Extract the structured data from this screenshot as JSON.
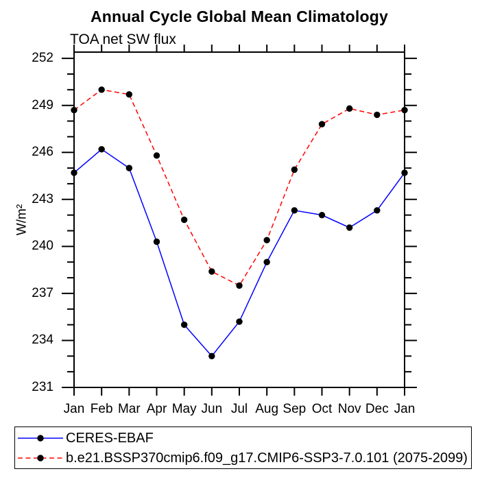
{
  "title": "Annual Cycle Global Mean Climatology",
  "subtitle": "TOA net SW flux",
  "colors": {
    "background": "#ffffff",
    "axis": "#000000",
    "series1": "#0000ff",
    "series2": "#ff0000",
    "marker": "#000000"
  },
  "chart_data": {
    "type": "line",
    "title": "Annual Cycle Global Mean Climatology",
    "subtitle": "TOA net SW flux",
    "xlabel": "",
    "ylabel": "W/m²",
    "x_categories": [
      "Jan",
      "Feb",
      "Mar",
      "Apr",
      "May",
      "Jun",
      "Jul",
      "Aug",
      "Sep",
      "Oct",
      "Nov",
      "Dec",
      "Jan"
    ],
    "ylim": [
      231,
      252.4
    ],
    "yticks": [
      231,
      234,
      237,
      240,
      243,
      246,
      249,
      252
    ],
    "ytick_interval_major": 3,
    "ytick_interval_minor": 1,
    "grid": false,
    "legend_position": "bottom-box",
    "series": [
      {
        "name": "CERES-EBAF",
        "color": "#0000ff",
        "line_style": "solid",
        "marker": "filled-circle",
        "marker_color": "#000000",
        "values": [
          244.7,
          246.2,
          245.0,
          240.3,
          235.0,
          233.0,
          235.2,
          239.0,
          242.3,
          242.0,
          241.2,
          242.3,
          244.7
        ]
      },
      {
        "name": "b.e21.BSSP370cmip6.f09_g17.CMIP6-SSP3-7.0.101 (2075-2099)",
        "color": "#ff0000",
        "line_style": "dashed",
        "marker": "filled-circle",
        "marker_color": "#000000",
        "values": [
          248.7,
          250.0,
          249.7,
          245.8,
          241.7,
          238.4,
          237.5,
          240.4,
          244.9,
          247.8,
          248.8,
          248.4,
          248.7
        ]
      }
    ]
  }
}
